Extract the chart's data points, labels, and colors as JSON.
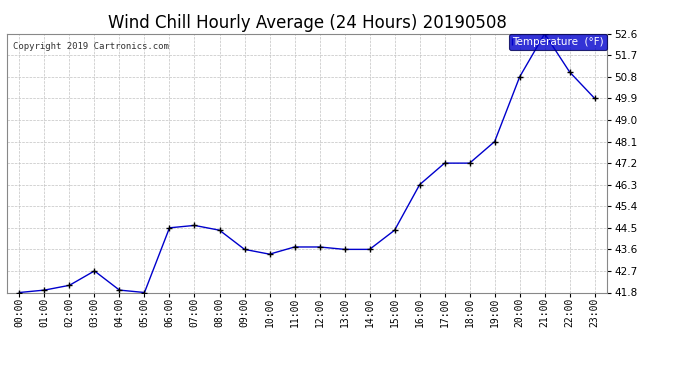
{
  "title": "Wind Chill Hourly Average (24 Hours) 20190508",
  "copyright": "Copyright 2019 Cartronics.com",
  "legend_label": "Temperature  (°F)",
  "x_labels": [
    "00:00",
    "01:00",
    "02:00",
    "03:00",
    "04:00",
    "05:00",
    "06:00",
    "07:00",
    "08:00",
    "09:00",
    "10:00",
    "11:00",
    "12:00",
    "13:00",
    "14:00",
    "15:00",
    "16:00",
    "17:00",
    "18:00",
    "19:00",
    "20:00",
    "21:00",
    "22:00",
    "23:00"
  ],
  "y_values": [
    41.8,
    41.9,
    42.1,
    42.7,
    41.9,
    41.8,
    44.5,
    44.6,
    44.4,
    43.6,
    43.4,
    43.7,
    43.7,
    43.6,
    43.6,
    44.4,
    46.3,
    47.2,
    47.2,
    48.1,
    50.8,
    52.6,
    51.0,
    49.9
  ],
  "ylim_min": 41.8,
  "ylim_max": 52.6,
  "yticks": [
    41.8,
    42.7,
    43.6,
    44.5,
    45.4,
    46.3,
    47.2,
    48.1,
    49.0,
    49.9,
    50.8,
    51.7,
    52.6
  ],
  "line_color": "#0000cc",
  "marker_color": "#000000",
  "bg_color": "#ffffff",
  "grid_color": "#bbbbbb",
  "title_fontsize": 12,
  "legend_bg": "#0000cc",
  "legend_text_color": "#ffffff",
  "copyright_fontsize": 6.5,
  "tick_fontsize": 7,
  "ytick_fontsize": 7.5
}
